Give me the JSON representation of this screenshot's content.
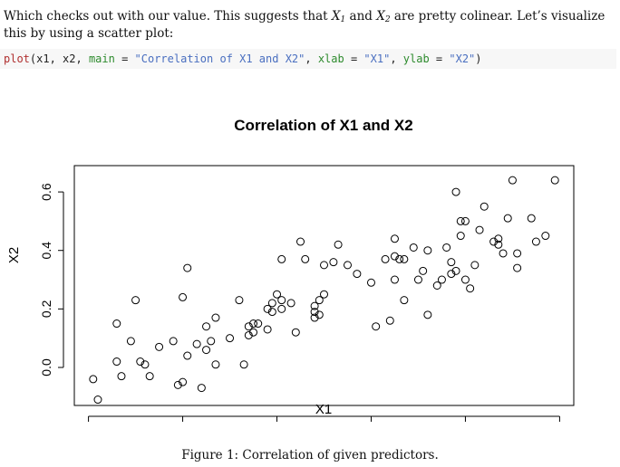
{
  "paragraph": {
    "part1": "Which checks out with our value. This suggests that ",
    "x1": "X",
    "x1_sub": "1",
    "and": " and ",
    "x2": "X",
    "x2_sub": "2",
    "part2": " are pretty colinear. Let’s visualize this by using a scatter plot:"
  },
  "code": {
    "fn": "plot",
    "open": "(x1, x2, ",
    "main_arg": "main",
    "eq1": " = ",
    "main_val": "\"Correlation of X1 and X2\"",
    "comma1": ", ",
    "xlab_arg": "xlab",
    "eq2": " = ",
    "xlab_val": "\"X1\"",
    "comma2": ", ",
    "ylab_arg": "ylab",
    "eq3": " = ",
    "ylab_val": "\"X2\"",
    "close": ")"
  },
  "chart_data": {
    "type": "scatter",
    "title": "Correlation of X1 and X2",
    "xlabel": "X1",
    "ylabel": "X2",
    "xlim": [
      -0.03,
      1.03
    ],
    "ylim": [
      -0.13,
      0.69
    ],
    "xticks": [
      "0.0",
      "0.2",
      "0.4",
      "0.6",
      "0.8",
      "1.0"
    ],
    "yticks": [
      "0.0",
      "0.2",
      "0.4",
      "0.6"
    ],
    "grid": false,
    "legend": "none",
    "points": [
      [
        0.01,
        -0.04
      ],
      [
        0.02,
        -0.11
      ],
      [
        0.06,
        0.02
      ],
      [
        0.06,
        0.15
      ],
      [
        0.07,
        -0.03
      ],
      [
        0.09,
        0.09
      ],
      [
        0.1,
        0.23
      ],
      [
        0.11,
        0.02
      ],
      [
        0.12,
        0.01
      ],
      [
        0.13,
        -0.03
      ],
      [
        0.15,
        0.07
      ],
      [
        0.18,
        0.09
      ],
      [
        0.19,
        -0.06
      ],
      [
        0.2,
        0.24
      ],
      [
        0.2,
        -0.05
      ],
      [
        0.21,
        0.34
      ],
      [
        0.21,
        0.04
      ],
      [
        0.23,
        0.08
      ],
      [
        0.24,
        -0.07
      ],
      [
        0.25,
        0.06
      ],
      [
        0.25,
        0.14
      ],
      [
        0.26,
        0.09
      ],
      [
        0.27,
        0.17
      ],
      [
        0.27,
        0.01
      ],
      [
        0.3,
        0.1
      ],
      [
        0.32,
        0.23
      ],
      [
        0.33,
        0.01
      ],
      [
        0.34,
        0.11
      ],
      [
        0.35,
        0.15
      ],
      [
        0.35,
        0.12
      ],
      [
        0.34,
        0.14
      ],
      [
        0.36,
        0.15
      ],
      [
        0.38,
        0.13
      ],
      [
        0.38,
        0.2
      ],
      [
        0.39,
        0.19
      ],
      [
        0.39,
        0.22
      ],
      [
        0.4,
        0.25
      ],
      [
        0.41,
        0.2
      ],
      [
        0.41,
        0.23
      ],
      [
        0.41,
        0.37
      ],
      [
        0.43,
        0.22
      ],
      [
        0.44,
        0.12
      ],
      [
        0.45,
        0.43
      ],
      [
        0.46,
        0.37
      ],
      [
        0.48,
        0.19
      ],
      [
        0.48,
        0.17
      ],
      [
        0.48,
        0.21
      ],
      [
        0.49,
        0.18
      ],
      [
        0.49,
        0.23
      ],
      [
        0.5,
        0.25
      ],
      [
        0.5,
        0.35
      ],
      [
        0.52,
        0.36
      ],
      [
        0.53,
        0.42
      ],
      [
        0.55,
        0.35
      ],
      [
        0.57,
        0.32
      ],
      [
        0.6,
        0.29
      ],
      [
        0.61,
        0.14
      ],
      [
        0.63,
        0.37
      ],
      [
        0.64,
        0.16
      ],
      [
        0.65,
        0.44
      ],
      [
        0.65,
        0.3
      ],
      [
        0.65,
        0.38
      ],
      [
        0.66,
        0.37
      ],
      [
        0.67,
        0.37
      ],
      [
        0.67,
        0.23
      ],
      [
        0.69,
        0.41
      ],
      [
        0.7,
        0.3
      ],
      [
        0.71,
        0.33
      ],
      [
        0.72,
        0.18
      ],
      [
        0.72,
        0.4
      ],
      [
        0.74,
        0.28
      ],
      [
        0.75,
        0.3
      ],
      [
        0.76,
        0.41
      ],
      [
        0.77,
        0.32
      ],
      [
        0.77,
        0.36
      ],
      [
        0.78,
        0.6
      ],
      [
        0.78,
        0.33
      ],
      [
        0.79,
        0.5
      ],
      [
        0.79,
        0.45
      ],
      [
        0.8,
        0.5
      ],
      [
        0.8,
        0.3
      ],
      [
        0.81,
        0.27
      ],
      [
        0.82,
        0.35
      ],
      [
        0.83,
        0.47
      ],
      [
        0.84,
        0.55
      ],
      [
        0.86,
        0.43
      ],
      [
        0.87,
        0.44
      ],
      [
        0.87,
        0.42
      ],
      [
        0.88,
        0.39
      ],
      [
        0.89,
        0.51
      ],
      [
        0.9,
        0.64
      ],
      [
        0.91,
        0.34
      ],
      [
        0.91,
        0.39
      ],
      [
        0.94,
        0.51
      ],
      [
        0.95,
        0.43
      ],
      [
        0.97,
        0.45
      ],
      [
        0.99,
        0.64
      ]
    ]
  },
  "caption": "Figure 1: Correlation of given predictors."
}
